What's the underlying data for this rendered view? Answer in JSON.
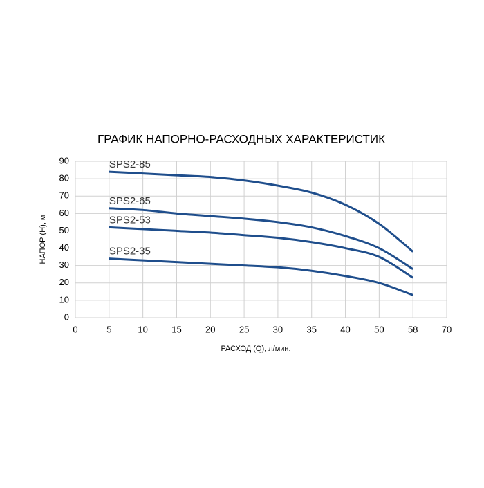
{
  "chart_data": {
    "type": "line",
    "title": "ГРАФИК НАПОРНО-РАСХОДНЫХ ХАРАКТЕРИСТИК",
    "xlabel": "РАСХОД (Q), л/мин.",
    "ylabel": "НАПОР (Н), м",
    "categories": [
      0,
      5,
      10,
      15,
      20,
      25,
      30,
      35,
      40,
      50,
      58,
      70
    ],
    "series": [
      {
        "name": "SPS2-85",
        "color": "#1f4e8c",
        "values": [
          null,
          84,
          83,
          82,
          81,
          79,
          76,
          72,
          65,
          54,
          38,
          null
        ]
      },
      {
        "name": "SPS2-65",
        "color": "#1f4e8c",
        "values": [
          null,
          63,
          62,
          60,
          58.5,
          57,
          55,
          52,
          47,
          40,
          28,
          null
        ]
      },
      {
        "name": "SPS2-53",
        "color": "#1f4e8c",
        "values": [
          null,
          52,
          51,
          50,
          49,
          47.5,
          46,
          43.5,
          40,
          35,
          23,
          null
        ]
      },
      {
        "name": "SPS2-35",
        "color": "#1f4e8c",
        "values": [
          null,
          34,
          33,
          32,
          31,
          30,
          29,
          27,
          24,
          20,
          13,
          null
        ]
      }
    ],
    "ylim": [
      0,
      90
    ],
    "yticks": [
      0,
      10,
      20,
      30,
      40,
      50,
      60,
      70,
      80,
      90
    ],
    "grid": true
  }
}
